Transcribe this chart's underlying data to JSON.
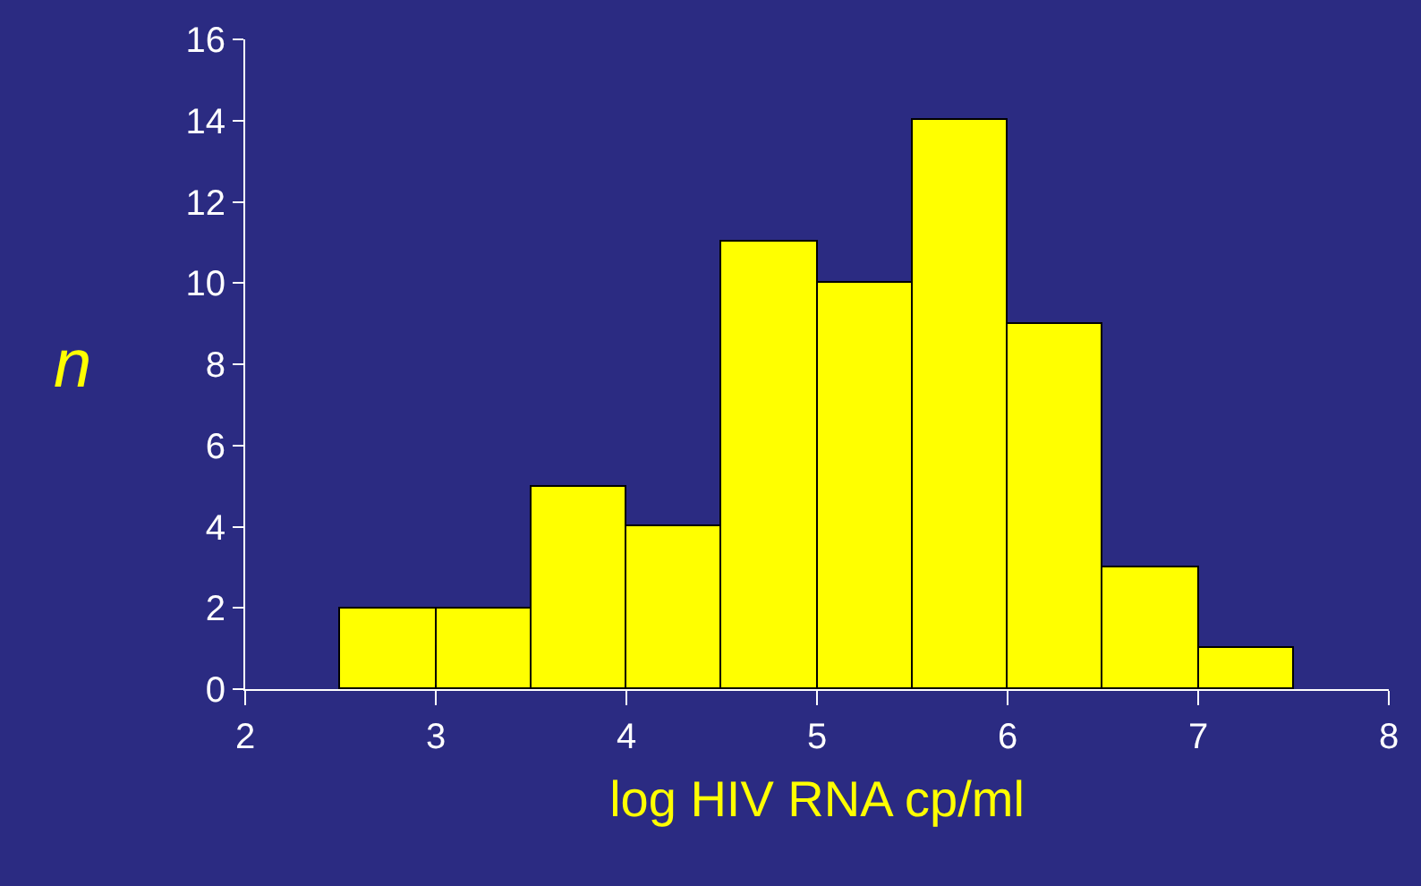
{
  "chart_data": {
    "type": "histogram",
    "xlabel": "log HIV RNA cp/ml",
    "ylabel": "n",
    "bins": [
      2.5,
      3,
      3.5,
      4,
      4.5,
      5,
      5.5,
      6,
      6.5,
      7,
      7.5
    ],
    "values": [
      2,
      2,
      5,
      4,
      11,
      10,
      14,
      9,
      3,
      1
    ],
    "color": "#ffff00",
    "xlim": [
      2,
      8
    ],
    "xticks": [
      2,
      3,
      4,
      5,
      6,
      7,
      8
    ],
    "ylim": [
      0,
      16
    ],
    "yticks": [
      0,
      2,
      4,
      6,
      8,
      10,
      12,
      14,
      16
    ],
    "grid": false
  }
}
